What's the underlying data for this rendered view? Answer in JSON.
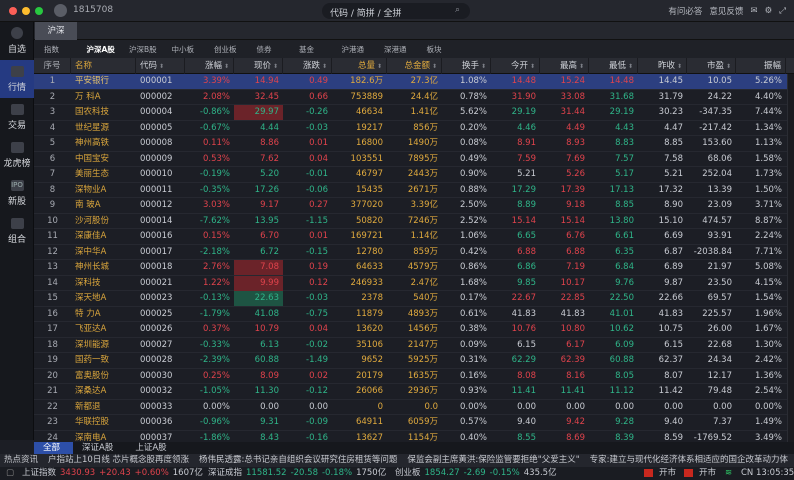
{
  "titlebar": {
    "user_id": "1815708",
    "search_placeholder": "代码 / 简拼 / 全拼",
    "links": [
      "有问必答",
      "意见反馈"
    ]
  },
  "sidebar": {
    "items": [
      {
        "label": "自选",
        "icon": "star-icon"
      },
      {
        "label": "行情",
        "icon": "bar-chart-icon",
        "active": true
      },
      {
        "label": "交易",
        "icon": "exchange-icon"
      },
      {
        "label": "龙虎榜",
        "icon": "pie-chart-icon"
      },
      {
        "label": "新股",
        "icon": "ipo-icon",
        "glyph": "IPO"
      },
      {
        "label": "组合",
        "icon": "portfolio-icon"
      }
    ]
  },
  "market_tab": "沪深",
  "sub_tabs": [
    "指数",
    "沪深A股",
    "沪深B股",
    "中小板",
    "创业板",
    "债券",
    "基金",
    "沪港通",
    "深港通",
    "板块"
  ],
  "active_sub_tab": "沪深A股",
  "columns": [
    "序号",
    "名称",
    "代码",
    "涨幅",
    "现价",
    "涨跌",
    "总量",
    "总金额",
    "换手",
    "今开",
    "最高",
    "最低",
    "昨收",
    "市盈",
    "振幅"
  ],
  "colors": {
    "up": "#e0434c",
    "down": "#2fb589",
    "name": "#d9a53c",
    "volume": "#e0aa3e",
    "selected_row": "#2c3f80"
  },
  "rows": [
    [
      "1",
      "平安银行",
      "000001",
      "3.39%",
      "14.94",
      "0.49",
      "182.6万",
      "27.3亿",
      "1.08%",
      "14.48",
      "15.24",
      "14.48",
      "14.45",
      "10.05",
      "5.26%"
    ],
    [
      "2",
      "万 科A",
      "000002",
      "2.08%",
      "32.45",
      "0.66",
      "753889",
      "24.4亿",
      "0.78%",
      "31.90",
      "33.08",
      "31.68",
      "31.79",
      "24.22",
      "4.40%"
    ],
    [
      "3",
      "国农科技",
      "000004",
      "-0.86%",
      "29.97",
      "-0.26",
      "46634",
      "1.41亿",
      "5.62%",
      "29.19",
      "31.44",
      "29.19",
      "30.23",
      "-347.35",
      "7.44%"
    ],
    [
      "4",
      "世纪星源",
      "000005",
      "-0.67%",
      "4.44",
      "-0.03",
      "19217",
      "856万",
      "0.20%",
      "4.46",
      "4.49",
      "4.43",
      "4.47",
      "-217.42",
      "1.34%"
    ],
    [
      "5",
      "神州高铁",
      "000008",
      "0.11%",
      "8.86",
      "0.01",
      "16800",
      "1490万",
      "0.08%",
      "8.91",
      "8.93",
      "8.83",
      "8.85",
      "153.60",
      "1.13%"
    ],
    [
      "6",
      "中国宝安",
      "000009",
      "0.53%",
      "7.62",
      "0.04",
      "103551",
      "7895万",
      "0.49%",
      "7.59",
      "7.69",
      "7.57",
      "7.58",
      "68.06",
      "1.58%"
    ],
    [
      "7",
      "美丽生态",
      "000010",
      "-0.19%",
      "5.20",
      "-0.01",
      "46797",
      "2443万",
      "0.90%",
      "5.21",
      "5.26",
      "5.17",
      "5.21",
      "252.04",
      "1.73%"
    ],
    [
      "8",
      "深物业A",
      "000011",
      "-0.35%",
      "17.26",
      "-0.06",
      "15435",
      "2671万",
      "0.88%",
      "17.29",
      "17.39",
      "17.13",
      "17.32",
      "13.39",
      "1.50%"
    ],
    [
      "9",
      "南 玻A",
      "000012",
      "3.03%",
      "9.17",
      "0.27",
      "377020",
      "3.39亿",
      "2.50%",
      "8.89",
      "9.18",
      "8.85",
      "8.90",
      "23.09",
      "3.71%"
    ],
    [
      "10",
      "沙河股份",
      "000014",
      "-7.62%",
      "13.95",
      "-1.15",
      "50820",
      "7246万",
      "2.52%",
      "15.14",
      "15.14",
      "13.80",
      "15.10",
      "474.57",
      "8.87%"
    ],
    [
      "11",
      "深康佳A",
      "000016",
      "0.15%",
      "6.70",
      "0.01",
      "169721",
      "1.14亿",
      "1.06%",
      "6.65",
      "6.76",
      "6.61",
      "6.69",
      "93.91",
      "2.24%"
    ],
    [
      "12",
      "深中华A",
      "000017",
      "-2.18%",
      "6.72",
      "-0.15",
      "12780",
      "859万",
      "0.42%",
      "6.88",
      "6.88",
      "6.35",
      "6.87",
      "-2038.84",
      "7.71%"
    ],
    [
      "13",
      "神州长城",
      "000018",
      "2.76%",
      "7.08",
      "0.19",
      "64633",
      "4579万",
      "0.86%",
      "6.86",
      "7.19",
      "6.84",
      "6.89",
      "21.97",
      "5.08%"
    ],
    [
      "14",
      "深科技",
      "000021",
      "1.22%",
      "9.99",
      "0.12",
      "246933",
      "2.47亿",
      "1.68%",
      "9.85",
      "10.17",
      "9.76",
      "9.87",
      "23.50",
      "4.15%"
    ],
    [
      "15",
      "深天地A",
      "000023",
      "-0.13%",
      "22.63",
      "-0.03",
      "2378",
      "540万",
      "0.17%",
      "22.67",
      "22.85",
      "22.50",
      "22.66",
      "69.57",
      "1.54%"
    ],
    [
      "16",
      "特 力A",
      "000025",
      "-1.79%",
      "41.08",
      "-0.75",
      "11879",
      "4893万",
      "0.61%",
      "41.83",
      "41.83",
      "41.01",
      "41.83",
      "225.57",
      "1.96%"
    ],
    [
      "17",
      "飞亚达A",
      "000026",
      "0.37%",
      "10.79",
      "0.04",
      "13620",
      "1456万",
      "0.38%",
      "10.76",
      "10.80",
      "10.62",
      "10.75",
      "26.00",
      "1.67%"
    ],
    [
      "18",
      "深圳能源",
      "000027",
      "-0.33%",
      "6.13",
      "-0.02",
      "35106",
      "2147万",
      "0.09%",
      "6.15",
      "6.17",
      "6.09",
      "6.15",
      "22.68",
      "1.30%"
    ],
    [
      "19",
      "国药一致",
      "000028",
      "-2.39%",
      "60.88",
      "-1.49",
      "9652",
      "5925万",
      "0.31%",
      "62.29",
      "62.39",
      "60.88",
      "62.37",
      "24.34",
      "2.42%"
    ],
    [
      "20",
      "富奥股份",
      "000030",
      "0.25%",
      "8.09",
      "0.02",
      "20179",
      "1635万",
      "0.16%",
      "8.08",
      "8.16",
      "8.05",
      "8.07",
      "12.17",
      "1.36%"
    ],
    [
      "21",
      "深桑达A",
      "000032",
      "-1.05%",
      "11.30",
      "-0.12",
      "26066",
      "2936万",
      "0.93%",
      "11.41",
      "11.41",
      "11.12",
      "11.42",
      "79.48",
      "2.54%"
    ],
    [
      "22",
      "新都退",
      "000033",
      "0.00%",
      "0.00",
      "0.00",
      "0",
      "0.0",
      "0.00%",
      "0.00",
      "0.00",
      "0.00",
      "0.00",
      "0.00",
      "0.00%"
    ],
    [
      "23",
      "华联控股",
      "000036",
      "-0.96%",
      "9.31",
      "-0.09",
      "64911",
      "6059万",
      "0.57%",
      "9.40",
      "9.42",
      "9.28",
      "9.40",
      "7.37",
      "1.49%"
    ],
    [
      "24",
      "深南电A",
      "000037",
      "-1.86%",
      "8.43",
      "-0.16",
      "13627",
      "1154万",
      "0.40%",
      "8.55",
      "8.69",
      "8.39",
      "8.59",
      "-1769.52",
      "3.49%"
    ]
  ],
  "flash": {
    "3": "up",
    "13": "up",
    "14": "up",
    "15": "down"
  },
  "selected_row": "1",
  "bottom_tabs": [
    "全部",
    "深证A股",
    "上证A股"
  ],
  "news": [
    "热点资讯",
    "户指站上10日线 芯片概念股再度领涨",
    "杨伟民透露:总书记亲自组织会议研究住房租赁等问题",
    "保监会副主席黄洪:保险监管要拒绝\"父爱主义\"",
    "专家:建立与现代化经济体系相适应的国企改革动力体"
  ],
  "indices": [
    {
      "name": "上证指数",
      "value": "3430.93",
      "change": "+20.43",
      "pct": "+0.60%",
      "amount": "1607亿",
      "dir": "up"
    },
    {
      "name": "深证成指",
      "value": "11581.52",
      "change": "-20.58",
      "pct": "-0.18%",
      "amount": "1750亿",
      "dir": "down"
    },
    {
      "name": "创业板",
      "value": "1854.27",
      "change": "-2.69",
      "pct": "-0.15%",
      "amount": "435.5亿",
      "dir": "down"
    }
  ],
  "market_status": [
    {
      "label": "开市",
      "flag": "cn-flag-icon"
    },
    {
      "label": "开市",
      "flag": "hk-flag-icon"
    }
  ],
  "clock": "CN 13:05:35"
}
